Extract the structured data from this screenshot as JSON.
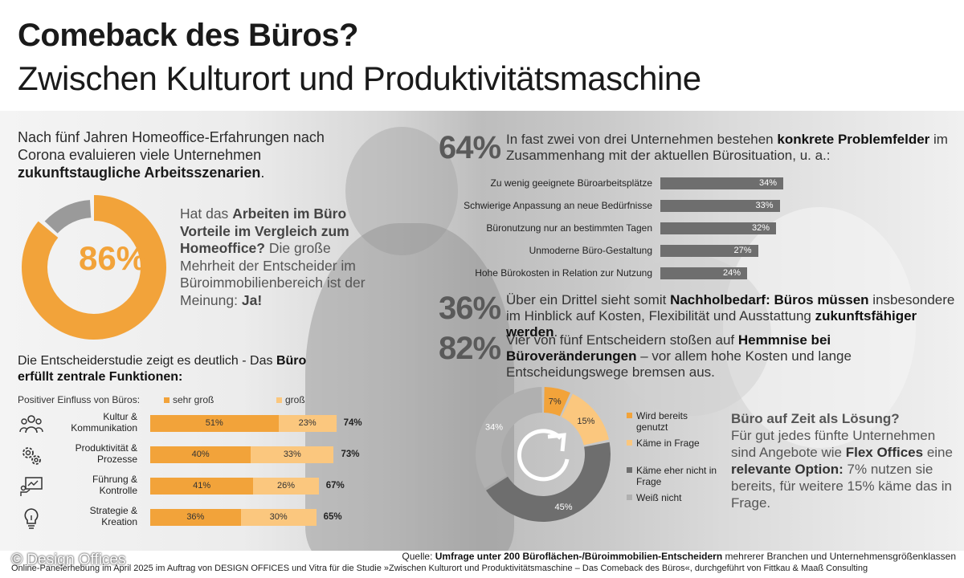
{
  "header": {
    "title": "Comeback des Büros?",
    "subtitle": "Zwischen Kulturort und Produktivitätsmaschine"
  },
  "intro": {
    "text_1": "Nach fünf Jahren Homeoffice-Erfahrungen nach Corona evaluieren viele Unternehmen ",
    "text_bold": "zukunftstaugliche Arbeitsszenarien",
    "text_end": "."
  },
  "donut86": {
    "value_label": "86%",
    "question_1": "Hat das ",
    "question_bold": "Arbeiten im Büro Vorteile im Vergleich zum Homeoffice?",
    "answer_1": " Die große Mehrheit der Entscheider im Büroimmobilienbereich ist der Meinung: ",
    "answer_bold": "Ja!",
    "color": "#f2a33a"
  },
  "functions": {
    "heading_1": "Die Entscheiderstudie zeigt es deutlich - Das ",
    "heading_bold": "Büro erfüllt zentrale Funktionen:",
    "legend_title": "Positiver Einfluss von Büros:",
    "legend_high": "sehr groß",
    "legend_mid": "groß",
    "color_high": "#f2a33a",
    "color_mid": "#fbc77e"
  },
  "problems": {
    "pct": "64%",
    "text_1": "In fast zwei von drei Unternehmen bestehen ",
    "text_bold": "konkrete Problemfelder",
    "text_2": " im Zusammenhang mit der aktuellen Bürosituation, u. a.:"
  },
  "stat36": {
    "pct": "36%",
    "text_1": "Über ein Drittel sieht somit ",
    "text_bold_1": "Nachholbedarf: Büros müssen",
    "text_2": " insbesondere im Hinblick auf Kosten, Flexibilität und Ausstattung ",
    "text_bold_2": "zukunftsfähiger werden",
    "text_end": "."
  },
  "stat82": {
    "pct": "82%",
    "text_1": "Vier von fünf Entscheidern stoßen auf ",
    "text_bold": "Hemmnise bei Büroveränderungen",
    "text_2": " – vor allem hohe Kosten und lange Entscheidungswege bremsen aus."
  },
  "flex": {
    "heading": "Büro auf Zeit als Lösung?",
    "text_1": "Für gut jedes fünfte Unternehmen sind Angebote wie ",
    "text_bold_1": "Flex Offices",
    "text_2": " eine ",
    "text_bold_2": "relevante Option:",
    "text_3": " 7% nutzen sie bereits, für weitere 15% käme das in Frage."
  },
  "footer": {
    "source_label": "Quelle: ",
    "source_bold": "Umfrage unter 200 Büroflächen-/Büroimmobilien-Entscheidern",
    "source_rest": " mehrerer Branchen und Unternehmensgrößenklassen",
    "survey": "Online-Panelerhebung im April 2025 im Auftrag von DESIGN OFFICES und Vitra für die Studie »Zwischen Kulturort und Produktivitätsmaschine – Das Comeback des Büros«, durchgeführt von Fittkau & Maaß Consulting",
    "copyright": "© Design Offices"
  },
  "chart_data": [
    {
      "type": "pie",
      "id": "advantage_donut",
      "values": [
        86,
        14
      ],
      "colors": [
        "#f2a33a",
        "#9a9a9a"
      ],
      "center_label": "86%"
    },
    {
      "type": "bar",
      "id": "functions",
      "stacked": true,
      "categories": [
        "Kultur & Kommunikation",
        "Produktivität & Prozesse",
        "Führung & Kontrolle",
        "Strategie & Kreation"
      ],
      "series": [
        {
          "name": "sehr groß",
          "values": [
            51,
            40,
            41,
            36
          ],
          "labels": [
            "51%",
            "40%",
            "41%",
            "36%"
          ]
        },
        {
          "name": "groß",
          "values": [
            23,
            33,
            26,
            30
          ],
          "labels": [
            "23%",
            "33%",
            "26%",
            "30%"
          ]
        }
      ],
      "totals": [
        "74%",
        "73%",
        "67%",
        "65%"
      ],
      "icons": [
        "people-icon",
        "gears-icon",
        "presentation-icon",
        "lightbulb-icon"
      ]
    },
    {
      "type": "bar",
      "id": "problem_fields",
      "orientation": "horizontal",
      "categories": [
        "Zu wenig geeignete Büroarbeitsplätze",
        "Schwierige Anpassung an neue Bedürfnisse",
        "Büronutzung nur an bestimmten Tagen",
        "Unmoderne Büro-Gestaltung",
        "Hohe Bürokosten in Relation zur Nutzung"
      ],
      "values": [
        34,
        33,
        32,
        27,
        24
      ],
      "labels": [
        "34%",
        "33%",
        "32%",
        "27%",
        "24%"
      ],
      "color": "#6e6e6e"
    },
    {
      "type": "pie",
      "id": "flex_office_donut",
      "categories": [
        "Wird bereits genutzt",
        "Käme in Frage",
        "Käme eher nicht in Frage",
        "Weiß nicht"
      ],
      "values": [
        7,
        15,
        45,
        34
      ],
      "labels": [
        "7%",
        "15%",
        "45%",
        "34%"
      ],
      "colors": [
        "#f2a33a",
        "#fbc77e",
        "#6e6e6e",
        "#b0b0b0"
      ]
    }
  ]
}
